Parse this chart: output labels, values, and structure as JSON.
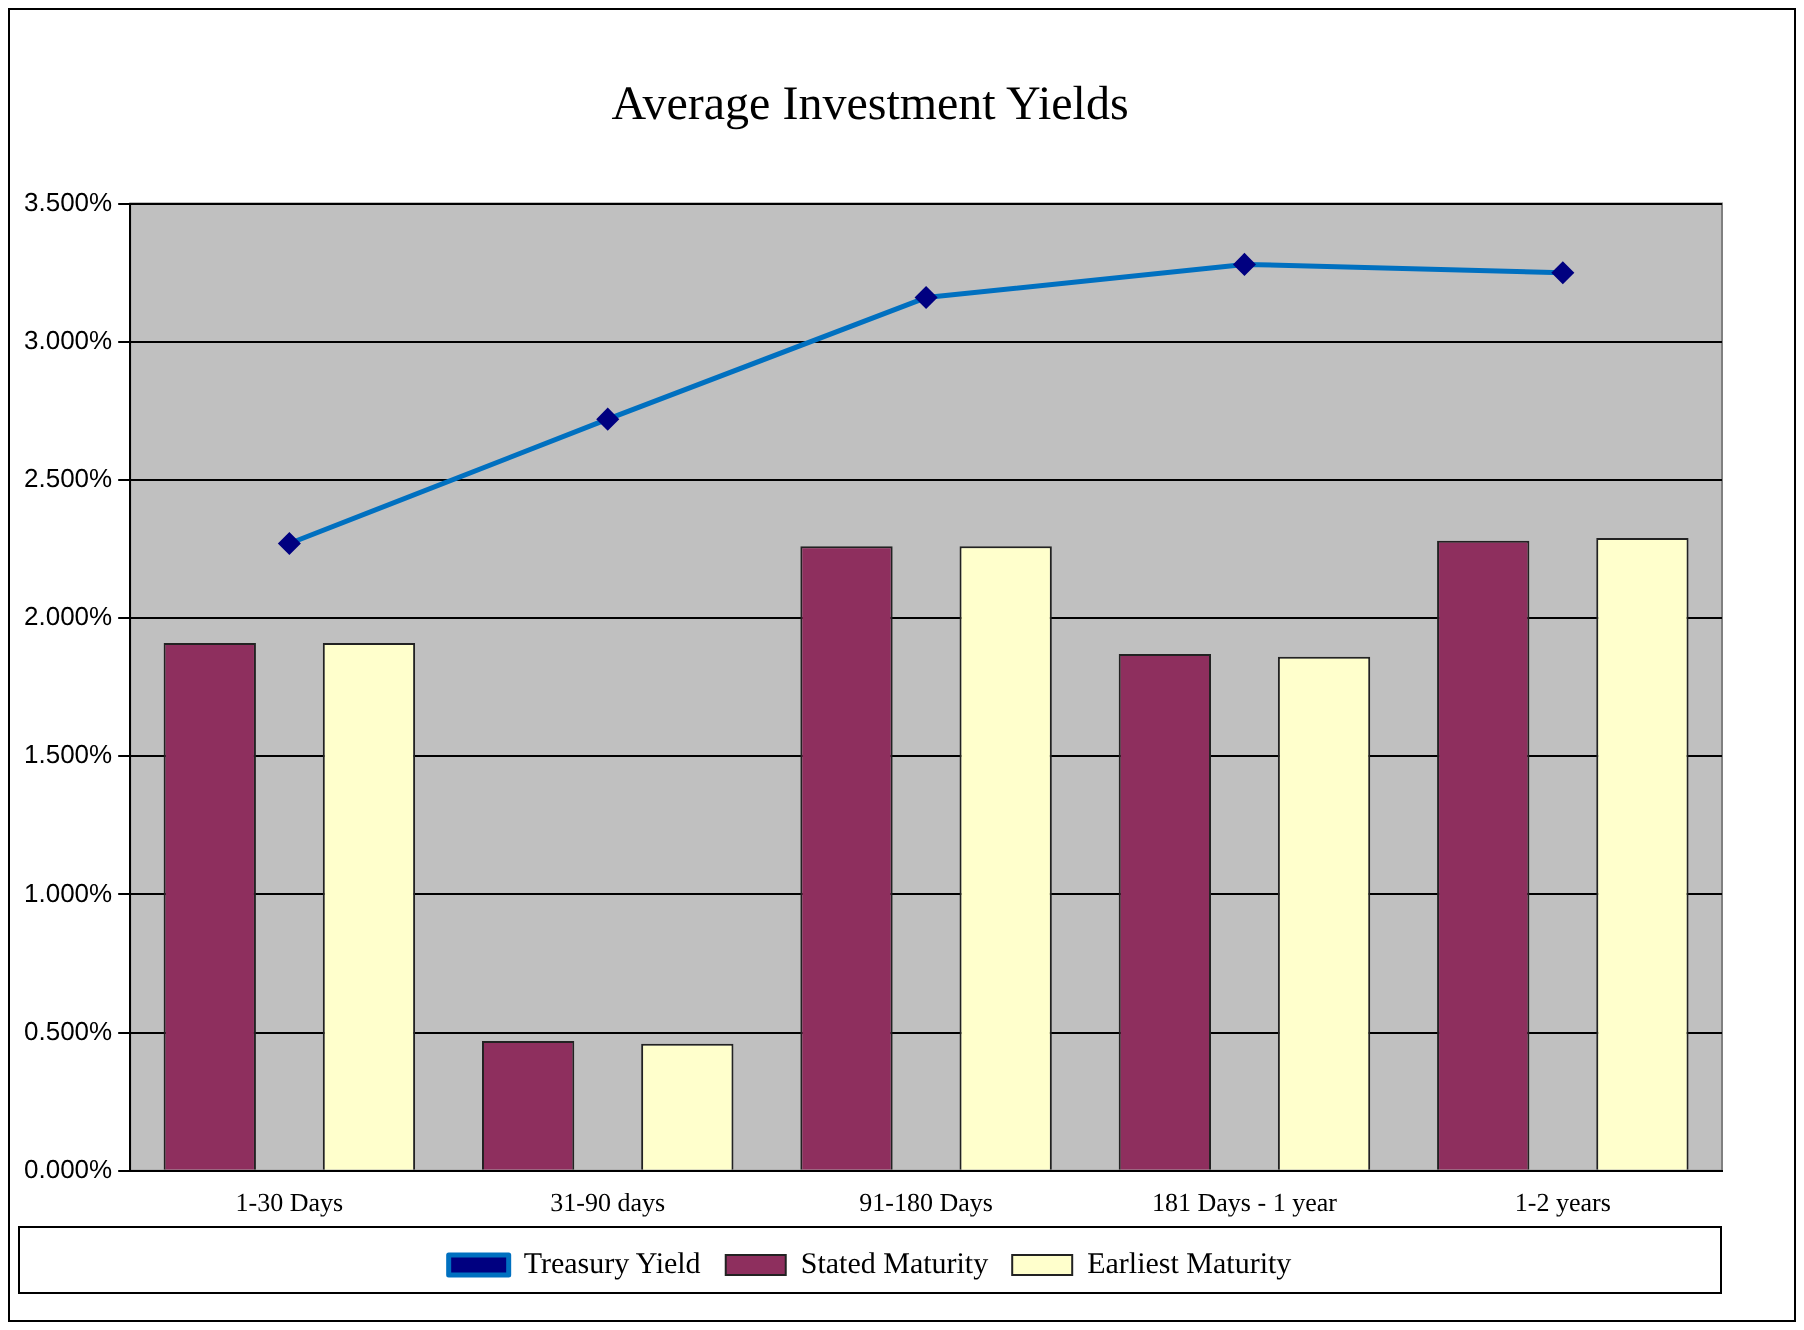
{
  "chart_data": {
    "type": "bar",
    "title": "Average Investment Yields",
    "categories": [
      "1-30 Days",
      "31-90 days",
      "91-180 Days",
      "181 Days - 1 year",
      "1-2 years"
    ],
    "series": [
      {
        "name": "Stated Maturity",
        "color": "#8e2f5e",
        "values": [
          1.91,
          0.47,
          2.26,
          1.87,
          2.28
        ]
      },
      {
        "name": "Earliest Maturity",
        "color": "#ffffcc",
        "values": [
          1.91,
          0.46,
          2.26,
          1.86,
          2.29
        ]
      },
      {
        "name": "Treasury Yield",
        "type": "line",
        "color": "#0070c0",
        "values": [
          2.27,
          2.72,
          3.16,
          3.28,
          3.25
        ]
      }
    ],
    "ylim": [
      0,
      3.5
    ],
    "yticks": [
      {
        "value": 0,
        "label": "0.000%"
      },
      {
        "value": 0.5,
        "label": "0.500%"
      },
      {
        "value": 1,
        "label": "1.000%"
      },
      {
        "value": 1.5,
        "label": "1.500%"
      },
      {
        "value": 2,
        "label": "2.000%"
      },
      {
        "value": 2.5,
        "label": "2.500%"
      },
      {
        "value": 3,
        "label": "3.000%"
      },
      {
        "value": 3.5,
        "label": "3.500%"
      }
    ],
    "grid": "y",
    "legend": "bottom",
    "marker": "diamond"
  }
}
